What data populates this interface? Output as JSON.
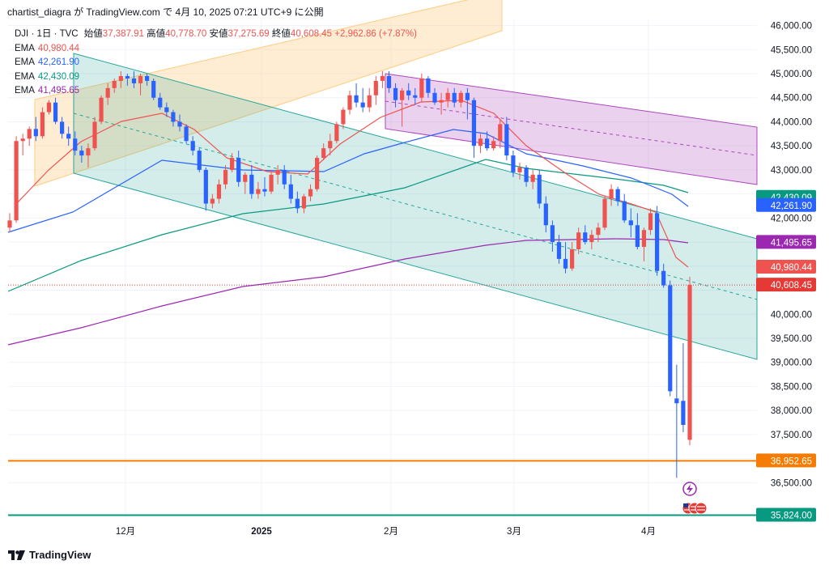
{
  "header": {
    "user": "chartist_diagra",
    "ga": "が",
    "site": "TradingView.com",
    "de": "で",
    "datetime": "4月 10, 2025 07:21 UTC+9",
    "published": "に公開"
  },
  "legend": {
    "symbol": "DJI · 1日 · TVC",
    "open_label": "始値",
    "open": "37,387.91",
    "high_label": "高値",
    "high": "40,778.70",
    "low_label": "安値",
    "low": "37,275.69",
    "close_label": "終値",
    "close": "40,608.45",
    "change": "+2,962.86 (+7.87%)",
    "emas": [
      {
        "label": "EMA",
        "value": "40,980.44",
        "color": "#ef5350"
      },
      {
        "label": "EMA",
        "value": "42,261.90",
        "color": "#2962ff"
      },
      {
        "label": "EMA",
        "value": "42,430.09",
        "color": "#089981"
      },
      {
        "label": "EMA",
        "value": "41,495.65",
        "color": "#9c27b0"
      }
    ]
  },
  "footer": {
    "brand": "TradingView",
    "logo_icon": "tradingview-logo-icon"
  },
  "colors": {
    "up": "#ef5350",
    "down": "#2962ff",
    "ema_short": "#ef5350",
    "ema_mid": "#2962ff",
    "ema_long": "#089981",
    "ema_xlong": "#9c27b0",
    "orange_line": "#f57c00",
    "teal_line": "#089981",
    "channel_orange": "#ffcc80",
    "channel_teal": "#26a69a",
    "channel_purple": "#ab47bc"
  },
  "chart_data": {
    "type": "candlestick",
    "title": "DJI · 1日 · TVC",
    "ylim": [
      35600,
      46000
    ],
    "y_ticks": [
      "46,000.00",
      "45,500.00",
      "45,000.00",
      "44,500.00",
      "44,000.00",
      "43,500.00",
      "43,000.00",
      "42,000.00",
      "40,000.00",
      "39,500.00",
      "39,000.00",
      "38,500.00",
      "38,000.00",
      "37,500.00",
      "36,500.00"
    ],
    "x_ticks": [
      {
        "label": "12月",
        "bold": false
      },
      {
        "label": "2025",
        "bold": true
      },
      {
        "label": "2月",
        "bold": false
      },
      {
        "label": "3月",
        "bold": false
      },
      {
        "label": "4月",
        "bold": false
      }
    ],
    "price_badges": [
      {
        "label": "42,430.09",
        "value": 42430.09,
        "color": "#089981"
      },
      {
        "label": "42,261.90",
        "value": 42261.9,
        "color": "#2962ff"
      },
      {
        "label": "41,495.65",
        "value": 41495.65,
        "color": "#9c27b0"
      },
      {
        "label": "40,980.44",
        "value": 40980.44,
        "color": "#ef5350"
      },
      {
        "label": "40,608.45",
        "value": 40608.45,
        "color": "#e53935"
      },
      {
        "label": "36,952.65",
        "value": 36952.65,
        "color": "#f57c00"
      },
      {
        "label": "35,824.00",
        "value": 35824.0,
        "color": "#089981"
      }
    ],
    "horizontal_lines": [
      {
        "value": 36952.65,
        "color": "#f57c00"
      },
      {
        "value": 35824.0,
        "color": "#089981"
      },
      {
        "value": 40608.45,
        "color": "#e53935",
        "dotted": true
      }
    ],
    "candles_ohlc": [
      [
        41800,
        42100,
        41700,
        41950
      ],
      [
        41950,
        43700,
        41900,
        43600
      ],
      [
        43600,
        43750,
        43300,
        43650
      ],
      [
        43650,
        43900,
        43500,
        43850
      ],
      [
        43850,
        44100,
        43600,
        43700
      ],
      [
        43700,
        44300,
        43650,
        44200
      ],
      [
        44200,
        44450,
        44150,
        44400
      ],
      [
        44400,
        44500,
        43950,
        44000
      ],
      [
        44000,
        44100,
        43650,
        43750
      ],
      [
        43750,
        43900,
        43500,
        43650
      ],
      [
        43650,
        43800,
        43300,
        43400
      ],
      [
        43400,
        43500,
        43150,
        43300
      ],
      [
        43300,
        43550,
        43050,
        43450
      ],
      [
        43450,
        44100,
        43400,
        44000
      ],
      [
        44000,
        44550,
        43950,
        44500
      ],
      [
        44500,
        44800,
        44350,
        44700
      ],
      [
        44700,
        44900,
        44600,
        44850
      ],
      [
        44850,
        45050,
        44700,
        44950
      ],
      [
        44950,
        45000,
        44750,
        44900
      ],
      [
        44900,
        45050,
        44700,
        44800
      ],
      [
        44800,
        45000,
        44550,
        44950
      ],
      [
        44950,
        45000,
        44750,
        44850
      ],
      [
        44850,
        44900,
        44450,
        44500
      ],
      [
        44500,
        44600,
        44250,
        44300
      ],
      [
        44300,
        44400,
        44100,
        44200
      ],
      [
        44200,
        44250,
        43900,
        44000
      ],
      [
        44000,
        44150,
        43800,
        43900
      ],
      [
        43900,
        43950,
        43550,
        43600
      ],
      [
        43600,
        43700,
        43300,
        43400
      ],
      [
        43400,
        43450,
        42950,
        43000
      ],
      [
        43000,
        43050,
        42150,
        42300
      ],
      [
        42300,
        42500,
        42200,
        42400
      ],
      [
        42400,
        42800,
        42300,
        42700
      ],
      [
        42700,
        43100,
        42600,
        43000
      ],
      [
        43000,
        43350,
        42950,
        43250
      ],
      [
        43250,
        43400,
        42650,
        42750
      ],
      [
        42750,
        42950,
        42500,
        42900
      ],
      [
        42900,
        43100,
        42400,
        42500
      ],
      [
        42500,
        42750,
        42400,
        42600
      ],
      [
        42600,
        42850,
        42450,
        42550
      ],
      [
        42550,
        43000,
        42500,
        42900
      ],
      [
        42900,
        43100,
        42700,
        43000
      ],
      [
        43000,
        43100,
        42600,
        42700
      ],
      [
        42700,
        42900,
        42300,
        42400
      ],
      [
        42400,
        42550,
        42100,
        42200
      ],
      [
        42200,
        42500,
        42100,
        42450
      ],
      [
        42450,
        42700,
        42350,
        42600
      ],
      [
        42600,
        43300,
        42550,
        43250
      ],
      [
        43250,
        43550,
        43200,
        43450
      ],
      [
        43450,
        43750,
        43300,
        43600
      ],
      [
        43600,
        44000,
        43550,
        43950
      ],
      [
        43950,
        44300,
        43850,
        44250
      ],
      [
        44250,
        44650,
        44150,
        44550
      ],
      [
        44550,
        44800,
        44300,
        44400
      ],
      [
        44400,
        44700,
        44200,
        44300
      ],
      [
        44300,
        44700,
        44200,
        44550
      ],
      [
        44550,
        44950,
        44350,
        44850
      ],
      [
        44850,
        45050,
        44700,
        44950
      ],
      [
        44950,
        45050,
        44600,
        44700
      ],
      [
        44700,
        44800,
        44300,
        44450
      ],
      [
        44450,
        44700,
        43900,
        44650
      ],
      [
        44650,
        44800,
        44450,
        44550
      ],
      [
        44550,
        44700,
        44350,
        44500
      ],
      [
        44500,
        45000,
        44400,
        44900
      ],
      [
        44900,
        44950,
        44500,
        44600
      ],
      [
        44600,
        44700,
        44350,
        44400
      ],
      [
        44400,
        44600,
        44150,
        44450
      ],
      [
        44450,
        44700,
        44300,
        44600
      ],
      [
        44600,
        44700,
        44300,
        44400
      ],
      [
        44400,
        44650,
        44300,
        44600
      ],
      [
        44600,
        44700,
        44050,
        44450
      ],
      [
        44450,
        44500,
        43250,
        43500
      ],
      [
        43500,
        43750,
        43350,
        43650
      ],
      [
        43650,
        43800,
        43400,
        43450
      ],
      [
        43450,
        43700,
        43400,
        43600
      ],
      [
        43600,
        44050,
        43450,
        43950
      ],
      [
        43950,
        44100,
        43200,
        43300
      ],
      [
        43300,
        43400,
        42850,
        42950
      ],
      [
        42950,
        43150,
        42800,
        43050
      ],
      [
        43050,
        43100,
        42650,
        42750
      ],
      [
        42750,
        43000,
        42600,
        42900
      ],
      [
        42900,
        43000,
        42200,
        42300
      ],
      [
        42300,
        42450,
        41700,
        41850
      ],
      [
        41850,
        41950,
        41300,
        41500
      ],
      [
        41500,
        41650,
        41050,
        41150
      ],
      [
        41150,
        41500,
        40850,
        40950
      ],
      [
        40950,
        41500,
        40900,
        41350
      ],
      [
        41350,
        41800,
        41250,
        41700
      ],
      [
        41700,
        41850,
        41450,
        41500
      ],
      [
        41500,
        41750,
        41350,
        41650
      ],
      [
        41650,
        41900,
        41500,
        41800
      ],
      [
        41800,
        42450,
        41750,
        42400
      ],
      [
        42400,
        42700,
        42250,
        42600
      ],
      [
        42600,
        42650,
        42250,
        42350
      ],
      [
        42350,
        42500,
        41900,
        41950
      ],
      [
        41950,
        42200,
        41600,
        41850
      ],
      [
        41850,
        42100,
        41350,
        41400
      ],
      [
        41400,
        41800,
        41100,
        41750
      ],
      [
        41750,
        42200,
        41650,
        42100
      ],
      [
        42100,
        42250,
        40800,
        40900
      ],
      [
        40900,
        41050,
        40550,
        40600
      ],
      [
        40600,
        40700,
        38300,
        38400
      ],
      [
        38250,
        38950,
        36600,
        38150
      ],
      [
        38200,
        39400,
        37550,
        37700
      ],
      [
        37390,
        40780,
        37280,
        40610
      ]
    ],
    "ema": [
      {
        "name": "EMA",
        "value": 40980.44,
        "color": "#ef5350"
      },
      {
        "name": "EMA",
        "value": 42261.9,
        "color": "#2962ff"
      },
      {
        "name": "EMA",
        "value": 42430.09,
        "color": "#089981"
      },
      {
        "name": "EMA",
        "value": 41495.65,
        "color": "#9c27b0"
      }
    ],
    "grid": true
  }
}
